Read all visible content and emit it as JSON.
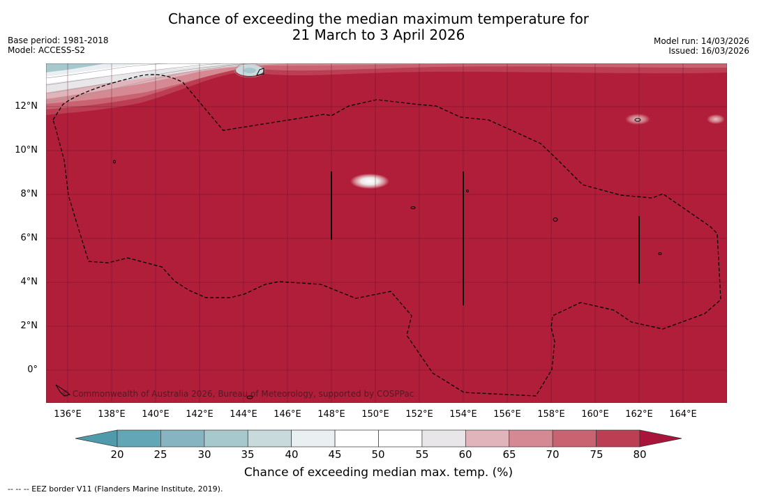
{
  "title": {
    "line1": "Chance of exceeding the median maximum temperature for",
    "line2": "21 March to 3 April 2026"
  },
  "meta": {
    "base_period": "Base period: 1981-2018",
    "model": "Model: ACCESS-S2",
    "model_run": "Model run: 14/03/2026",
    "issued": "Issued: 16/03/2026"
  },
  "map": {
    "background_color": "#b01e3a",
    "copyright": "© Commonwealth of Australia 2026, Bureau of Meteorology, supported by COSPPac",
    "longitude_labels": [
      "136°E",
      "138°E",
      "140°E",
      "142°E",
      "144°E",
      "146°E",
      "148°E",
      "150°E",
      "152°E",
      "154°E",
      "156°E",
      "158°E",
      "160°E",
      "162°E",
      "164°E"
    ],
    "latitude_labels": [
      "12°N",
      "10°N",
      "8°N",
      "6°N",
      "4°N",
      "2°N",
      "0°"
    ],
    "features": [
      "eez-border",
      "coastline",
      "gridlines"
    ]
  },
  "colorbar": {
    "label": "Chance of exceeding median max. temp. (%)",
    "ticks": [
      "20",
      "25",
      "30",
      "35",
      "40",
      "45",
      "50",
      "55",
      "60",
      "65",
      "70",
      "75",
      "80"
    ],
    "colors": [
      "#63a6b6",
      "#86b4c1",
      "#a7c8cd",
      "#c9dadc",
      "#eaeff1",
      "#ffffff",
      "#ffffff",
      "#e8e6e8",
      "#e0b4ba",
      "#d58a93",
      "#c96271",
      "#bb3e53"
    ],
    "under_color": "#4f9aab",
    "over_color": "#a9143a"
  },
  "footer": {
    "note": "--  --  -- EEZ border V11 (Flanders Marine Institute, 2019)."
  }
}
